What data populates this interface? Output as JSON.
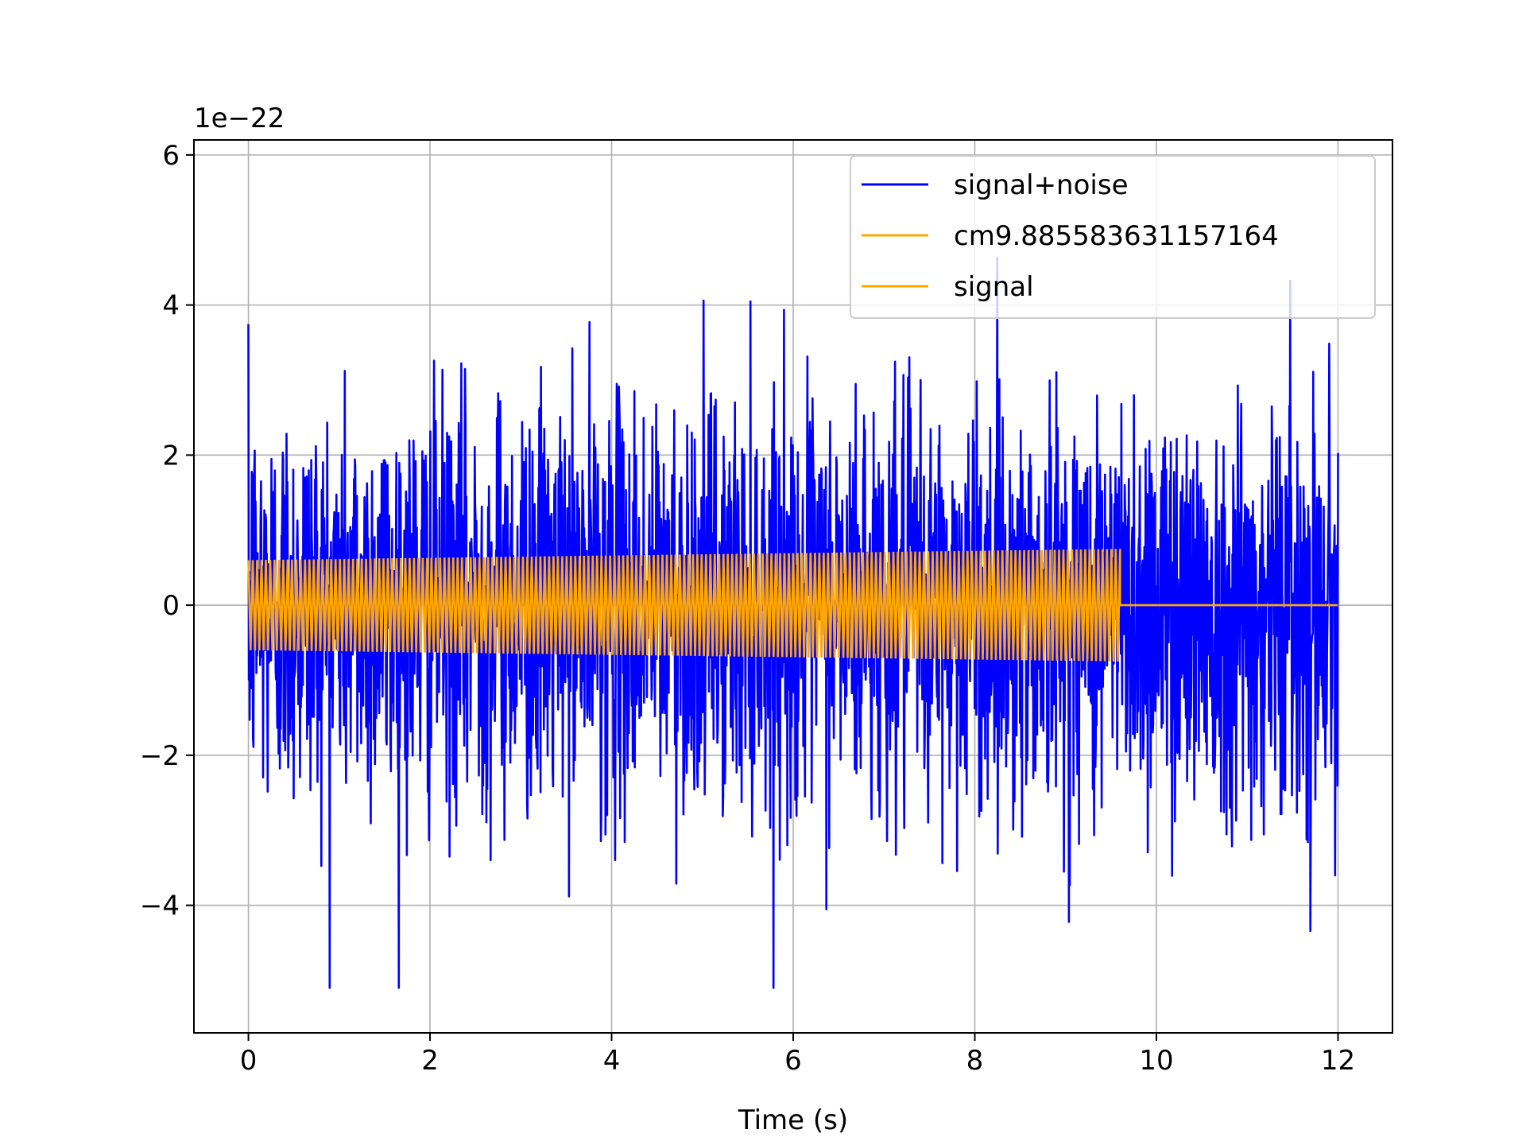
{
  "chart_data": {
    "type": "line",
    "xlabel": "Time (s)",
    "ylabel": "",
    "y_offset_text": "1e−22",
    "xlim": [
      -0.6,
      12.6
    ],
    "ylim": [
      -5.7,
      6.2
    ],
    "x_ticks": [
      0,
      2,
      4,
      6,
      8,
      10,
      12
    ],
    "y_ticks": [
      -4,
      -2,
      0,
      2,
      4,
      6
    ],
    "x_tick_labels": [
      "0",
      "2",
      "4",
      "6",
      "8",
      "10",
      "12"
    ],
    "y_tick_labels": [
      "−4",
      "−2",
      "0",
      "2",
      "4",
      "6"
    ],
    "grid": true,
    "legend_position": "top-right",
    "series": [
      {
        "name": "signal+noise",
        "color": "#0000ff",
        "x_range": [
          0,
          12
        ],
        "typical_envelope": [
          -2.5,
          2.5
        ],
        "peak_max": 5.6,
        "peak_min": -5.1
      },
      {
        "name": "cm9.885583631157164",
        "color": "#ffa500",
        "x_range": [
          0,
          9.6
        ],
        "amplitude_start": 0.6,
        "amplitude_end": 0.75,
        "value_after_end": 0
      },
      {
        "name": "signal",
        "color": "#ffa500",
        "x_range": [
          0,
          9.6
        ],
        "amplitude_start": 0.6,
        "amplitude_end": 0.75,
        "value_after_end": 0
      }
    ]
  }
}
